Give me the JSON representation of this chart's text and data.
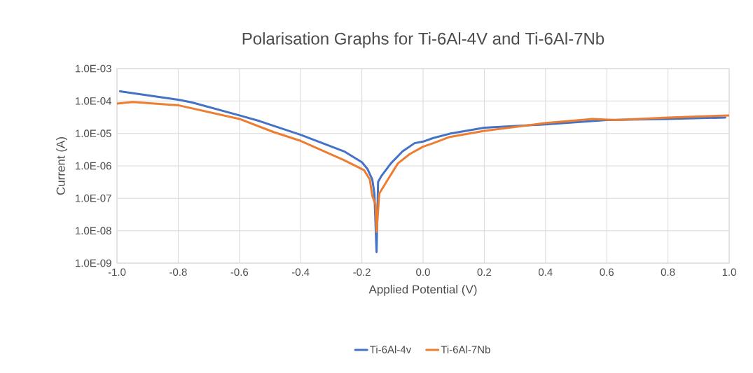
{
  "chart_data": {
    "type": "line",
    "title": "Polarisation Graphs for Ti-6Al-4V and Ti-6Al-7Nb",
    "xlabel": "Applied Potential (V)",
    "ylabel": "Current (A)",
    "log": "y",
    "grid": true,
    "legend": "bottom",
    "marker": "none",
    "line_style": "solid",
    "xlim": [
      -1.0,
      1.0
    ],
    "ylim": [
      1e-09,
      0.001
    ],
    "xticks": [
      {
        "value": -1.0,
        "label": "-1.0"
      },
      {
        "value": -0.8,
        "label": "-0.8"
      },
      {
        "value": -0.6,
        "label": "-0.6"
      },
      {
        "value": -0.4,
        "label": "-0.4"
      },
      {
        "value": -0.2,
        "label": "-0.2"
      },
      {
        "value": 0.0,
        "label": "0.0"
      },
      {
        "value": 0.2,
        "label": "0.2"
      },
      {
        "value": 0.4,
        "label": "0.4"
      },
      {
        "value": 0.6,
        "label": "0.6"
      },
      {
        "value": 0.8,
        "label": "0.8"
      },
      {
        "value": 1.0,
        "label": "1.0"
      }
    ],
    "yticks": [
      {
        "value": 1e-09,
        "label": "1.0E-09"
      },
      {
        "value": 1e-08,
        "label": "1.0E-08"
      },
      {
        "value": 1e-07,
        "label": "1.0E-07"
      },
      {
        "value": 1e-06,
        "label": "1.0E-06"
      },
      {
        "value": 1e-05,
        "label": "1.0E-05"
      },
      {
        "value": 0.0001,
        "label": "1.0E-04"
      },
      {
        "value": 0.001,
        "label": "1.0E-03"
      }
    ],
    "series": [
      {
        "name": "Ti-6Al-4v",
        "color": "#4472c4",
        "x": [
          -0.99,
          -0.8,
          -0.756,
          -0.6,
          -0.534,
          -0.4,
          -0.258,
          -0.2,
          -0.182,
          -0.166,
          -0.159,
          -0.152,
          -0.147,
          -0.136,
          -0.105,
          -0.067,
          -0.028,
          0.0,
          0.033,
          0.087,
          0.2,
          0.4,
          0.6,
          0.8,
          0.987
        ],
        "values": [
          0.0002,
          0.00011,
          9.1e-05,
          3.6e-05,
          2.4e-05,
          9.1e-06,
          2.8e-06,
          1.3e-06,
          8.1e-07,
          3.8e-07,
          1.4e-07,
          2.2e-09,
          3.2e-07,
          4.9e-07,
          1.2e-06,
          2.8e-06,
          5e-06,
          5.6e-06,
          7.2e-06,
          9.8e-06,
          1.5e-05,
          1.9e-05,
          2.6e-05,
          2.8e-05,
          3.1e-05
        ]
      },
      {
        "name": "Ti-6Al-7Nb",
        "color": "#ed7d31",
        "x": [
          -1.0,
          -0.948,
          -0.8,
          -0.6,
          -0.488,
          -0.4,
          -0.258,
          -0.193,
          -0.174,
          -0.166,
          -0.155,
          -0.152,
          -0.143,
          -0.12,
          -0.082,
          -0.044,
          0.0,
          0.033,
          0.087,
          0.2,
          0.4,
          0.554,
          0.63,
          0.8,
          1.0
        ],
        "values": [
          8.3e-05,
          9.3e-05,
          7.4e-05,
          2.8e-05,
          1.1e-05,
          5.9e-06,
          1.5e-06,
          7.4e-07,
          3.8e-07,
          1.2e-07,
          6.2e-08,
          9.1e-09,
          1.4e-07,
          3.2e-07,
          1.2e-06,
          2.3e-06,
          3.9e-06,
          5e-06,
          7.8e-06,
          1.2e-05,
          2.1e-05,
          2.8e-05,
          2.6e-05,
          3.1e-05,
          3.6e-05
        ]
      }
    ]
  }
}
